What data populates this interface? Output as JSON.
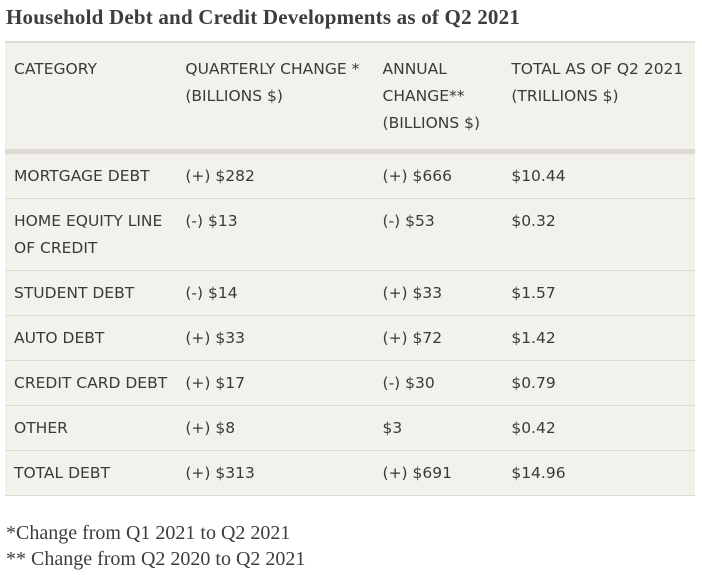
{
  "title": "Household Debt and Credit Developments as of Q2 2021",
  "table": {
    "headers": [
      "CATEGORY",
      "QUARTERLY CHANGE * (BILLIONS $)",
      "ANNUAL CHANGE** (BILLIONS $)",
      "TOTAL AS OF Q2 2021 (TRILLIONS $)"
    ],
    "rows": [
      {
        "category": "MORTGAGE DEBT",
        "quarterly": "(+) $282",
        "annual": "(+) $666",
        "total": "$10.44"
      },
      {
        "category": "HOME EQUITY LINE OF CREDIT",
        "quarterly": "(-) $13",
        "annual": "(-) $53",
        "total": "$0.32"
      },
      {
        "category": "STUDENT DEBT",
        "quarterly": "(-) $14",
        "annual": "(+) $33",
        "total": "$1.57"
      },
      {
        "category": "AUTO DEBT",
        "quarterly": "(+) $33",
        "annual": "(+) $72",
        "total": "$1.42"
      },
      {
        "category": "CREDIT CARD DEBT",
        "quarterly": "(+) $17",
        "annual": "(-) $30",
        "total": "$0.79"
      },
      {
        "category": "OTHER",
        "quarterly": "(+) $8",
        "annual": "$3",
        "total": "$0.42"
      },
      {
        "category": "TOTAL DEBT",
        "quarterly": "(+) $313",
        "annual": "(+) $691",
        "total": "$14.96"
      }
    ]
  },
  "footnotes": [
    "*Change from Q1 2021 to Q2 2021",
    "** Change from Q2 2020 to Q2 2021"
  ]
}
